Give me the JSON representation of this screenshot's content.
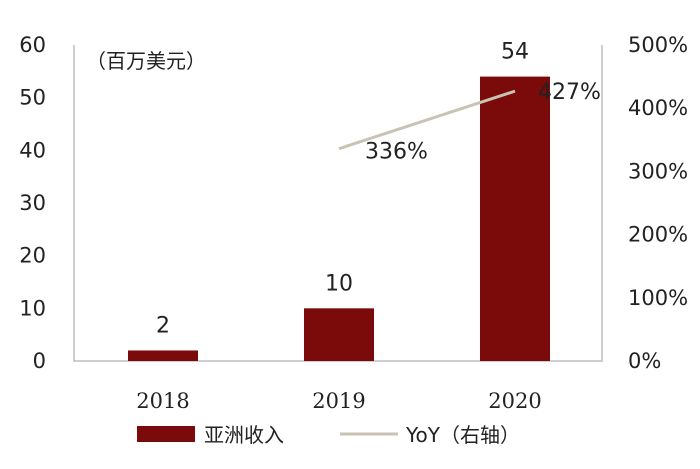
{
  "chart_data": {
    "type": "bar",
    "categories": [
      "2018",
      "2019",
      "2020"
    ],
    "series": [
      {
        "name": "亚洲收入",
        "type": "bar",
        "axis": "left",
        "values": [
          2,
          10,
          54
        ],
        "data_labels": [
          "2",
          "10",
          "54"
        ],
        "color": "#7b0a0a"
      },
      {
        "name": "YoY（右轴）",
        "type": "line",
        "axis": "right",
        "x": [
          "2019",
          "2020"
        ],
        "values": [
          336,
          427
        ],
        "data_labels": [
          "336%",
          "427%"
        ],
        "color": "#c9c3b3"
      }
    ],
    "unit_label": "（百万美元）",
    "left_axis": {
      "ylim": [
        0,
        60
      ],
      "ticks": [
        "0",
        "10",
        "20",
        "30",
        "40",
        "50",
        "60"
      ]
    },
    "right_axis": {
      "ylim": [
        0,
        500
      ],
      "ticks": [
        "0%",
        "100%",
        "200%",
        "300%",
        "400%",
        "500%"
      ]
    },
    "grid": false,
    "legend_position": "bottom"
  }
}
